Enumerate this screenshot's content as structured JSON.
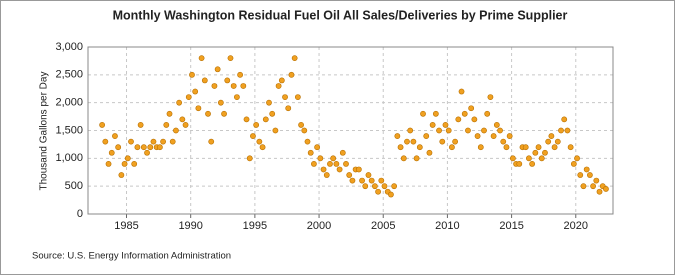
{
  "chart_data": {
    "type": "scatter",
    "title": "Monthly Washington Residual Fuel Oil All Sales/Deliveries by Prime Supplier",
    "y_label": "Thousand Gallons per Day",
    "source": "Source: U.S. Energy Information Administration",
    "color": "#f0a020",
    "edge_color": "#b87000",
    "grid": true,
    "xlim": [
      1982,
      2022.9
    ],
    "xticks": [
      1985,
      1990,
      1995,
      2000,
      2005,
      2010,
      2015,
      2020
    ],
    "ylim": [
      0,
      3000
    ],
    "yticks": [
      0,
      500,
      {
        "value": 1000,
        "label": "1,000"
      },
      {
        "value": 1500,
        "label": "1,500"
      },
      {
        "value": 2000,
        "label": "2,000"
      },
      {
        "value": 2500,
        "label": "2,500"
      },
      {
        "value": 3000,
        "label": "3,000"
      }
    ],
    "x": [
      1983.1,
      1983.35,
      1983.6,
      1983.85,
      1984.1,
      1984.35,
      1984.6,
      1984.85,
      1985.1,
      1985.35,
      1985.6,
      1985.85,
      1986.1,
      1986.35,
      1986.6,
      1986.85,
      1987.1,
      1987.35,
      1987.6,
      1987.85,
      1988.1,
      1988.35,
      1988.6,
      1988.85,
      1989.1,
      1989.35,
      1989.6,
      1989.85,
      1990.1,
      1990.35,
      1990.6,
      1990.85,
      1991.1,
      1991.35,
      1991.6,
      1991.85,
      1992.1,
      1992.35,
      1992.6,
      1992.85,
      1993.1,
      1993.35,
      1993.6,
      1993.85,
      1994.1,
      1994.35,
      1994.6,
      1994.85,
      1995.1,
      1995.35,
      1995.6,
      1995.85,
      1996.1,
      1996.35,
      1996.6,
      1996.85,
      1997.1,
      1997.35,
      1997.6,
      1997.85,
      1998.1,
      1998.35,
      1998.6,
      1998.85,
      1999.1,
      1999.35,
      1999.6,
      1999.85,
      2000.1,
      2000.35,
      2000.6,
      2000.85,
      2001.1,
      2001.35,
      2001.6,
      2001.85,
      2002.1,
      2002.35,
      2002.6,
      2002.85,
      2003.1,
      2003.35,
      2003.6,
      2003.85,
      2004.1,
      2004.35,
      2004.6,
      2004.85,
      2005.1,
      2005.35,
      2005.6,
      2005.85,
      2006.1,
      2006.35,
      2006.6,
      2006.85,
      2007.1,
      2007.35,
      2007.6,
      2007.85,
      2008.1,
      2008.35,
      2008.6,
      2008.85,
      2009.1,
      2009.35,
      2009.6,
      2009.85,
      2010.1,
      2010.35,
      2010.6,
      2010.85,
      2011.1,
      2011.35,
      2011.6,
      2011.85,
      2012.1,
      2012.35,
      2012.6,
      2012.85,
      2013.1,
      2013.35,
      2013.6,
      2013.85,
      2014.1,
      2014.35,
      2014.6,
      2014.85,
      2015.1,
      2015.35,
      2015.6,
      2015.85,
      2016.1,
      2016.35,
      2016.6,
      2016.85,
      2017.1,
      2017.35,
      2017.6,
      2017.85,
      2018.1,
      2018.35,
      2018.6,
      2018.85,
      2019.1,
      2019.35,
      2019.6,
      2019.85,
      2020.1,
      2020.35,
      2020.6,
      2020.85,
      2021.1,
      2021.35,
      2021.6,
      2021.85,
      2022.1,
      2022.35
    ],
    "values": [
      1600,
      1300,
      900,
      1100,
      1400,
      1200,
      700,
      900,
      1000,
      1300,
      900,
      1200,
      1600,
      1200,
      1100,
      1200,
      1300,
      1200,
      1200,
      1300,
      1600,
      1800,
      1300,
      1500,
      2000,
      1700,
      1600,
      2100,
      2500,
      2200,
      1900,
      2800,
      2400,
      1800,
      1300,
      2300,
      2600,
      2000,
      1800,
      2400,
      2800,
      2300,
      2100,
      2500,
      2300,
      1700,
      1000,
      1400,
      1600,
      1300,
      1200,
      1700,
      2000,
      1800,
      1500,
      2300,
      2400,
      2100,
      1900,
      2500,
      2800,
      2100,
      1600,
      1500,
      1300,
      1100,
      900,
      1200,
      1000,
      800,
      700,
      900,
      1000,
      900,
      800,
      1100,
      900,
      700,
      600,
      800,
      800,
      600,
      500,
      700,
      600,
      500,
      400,
      600,
      500,
      400,
      350,
      500,
      1400,
      1200,
      1000,
      1300,
      1500,
      1300,
      1000,
      1200,
      1800,
      1400,
      1100,
      1600,
      1800,
      1500,
      1300,
      1600,
      1500,
      1200,
      1300,
      1700,
      2200,
      1800,
      1500,
      1900,
      1700,
      1400,
      1200,
      1500,
      1800,
      2100,
      1400,
      1600,
      1500,
      1300,
      1200,
      1400,
      1000,
      900,
      900,
      1200,
      1200,
      1000,
      900,
      1100,
      1200,
      1000,
      1100,
      1300,
      1400,
      1200,
      1300,
      1500,
      1700,
      1500,
      1200,
      900,
      1000,
      700,
      500,
      800,
      700,
      500,
      600,
      400,
      500,
      450
    ]
  }
}
